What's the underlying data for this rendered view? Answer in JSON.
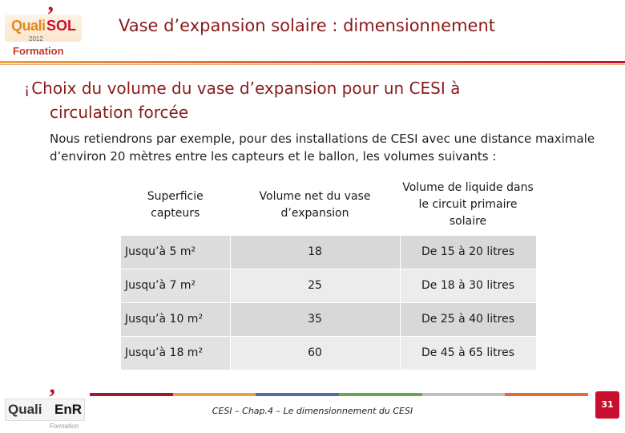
{
  "header": {
    "logo": {
      "name_a": "Quali",
      "name_b": "SOL",
      "year": "2012",
      "formation": "Formation"
    },
    "title": "Vase d’expansion solaire : dimensionnement"
  },
  "content": {
    "bullet_icon": "¡",
    "heading_line1": "Choix du volume du vase d’expansion pour un CESI à",
    "heading_line2": "circulation forcée",
    "paragraph": "Nous retiendrons par exemple, pour des installations de CESI avec une distance maximale d’environ 20 mètres entre les capteurs et le ballon, les volumes suivants :"
  },
  "table": {
    "headers": [
      "Superficie capteurs",
      "Volume net du vase d’expansion",
      "Volume de liquide dans le circuit primaire solaire"
    ],
    "rows": [
      [
        "Jusqu’à 5 m²",
        "18",
        "De 15 à 20 litres"
      ],
      [
        "Jusqu’à 7 m²",
        "25",
        "De 18 à 30 litres"
      ],
      [
        "Jusqu’à 10 m²",
        "35",
        "De 25 à 40 litres"
      ],
      [
        "Jusqu’à 18 m²",
        "60",
        "De 45 à 65 litres"
      ]
    ]
  },
  "footer": {
    "logo": {
      "name_a": "Quali",
      "name_b": "EnR",
      "formation": "Formation"
    },
    "text": "CESI – Chap.4 – Le dimensionnement du CESI",
    "page_number": "31"
  },
  "colors": {
    "accent": "#8b1a1a",
    "brand_red": "#c8102e",
    "brand_orange": "#e08a1e"
  }
}
